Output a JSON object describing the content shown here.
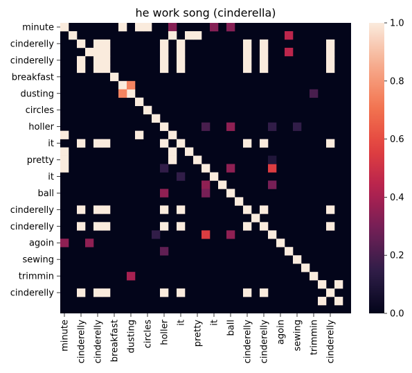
{
  "chart_data": {
    "type": "heatmap",
    "title": "he work song (cinderella)",
    "words": [
      "minute",
      "",
      "cinderelly",
      "",
      "cinderelly",
      "",
      "breakfast",
      "",
      "dusting",
      "",
      "circles",
      "",
      "holler",
      "",
      "it",
      "",
      "pretty",
      "",
      "it",
      "",
      "ball",
      "",
      "cinderelly",
      "",
      "cinderelly",
      "",
      "agoin",
      "",
      "sewing",
      "",
      "trimmin",
      "",
      "cinderelly",
      "",
      ""
    ],
    "x_tick_labels": [
      "minute",
      "cinderelly",
      "cinderelly",
      "breakfast",
      "dusting",
      "circles",
      "holler",
      "it",
      "pretty",
      "it",
      "ball",
      "cinderelly",
      "cinderelly",
      "agoin",
      "sewing",
      "trimmin",
      "cinderelly"
    ],
    "y_tick_labels": [
      "minute",
      "cinderelly",
      "cinderelly",
      "breakfast",
      "dusting",
      "circles",
      "holler",
      "it",
      "pretty",
      "it",
      "ball",
      "cinderelly",
      "cinderelly",
      "agoin",
      "sewing",
      "trimmin",
      "cinderelly"
    ],
    "tick_every": 2,
    "colorbar": {
      "min": 0.0,
      "max": 1.0,
      "ticks": [
        "0.0",
        "0.2",
        "0.4",
        "0.6",
        "0.8",
        "1.0"
      ]
    },
    "colormap": [
      "#03051a",
      "#2e1d47",
      "#701f57",
      "#b5214f",
      "#e3423e",
      "#f37651",
      "#f6ad8f",
      "#faebdd"
    ],
    "cells": [
      [
        0,
        0,
        1
      ],
      [
        1,
        1,
        1
      ],
      [
        2,
        2,
        1
      ],
      [
        3,
        3,
        1
      ],
      [
        4,
        4,
        1
      ],
      [
        5,
        5,
        1
      ],
      [
        6,
        6,
        1
      ],
      [
        7,
        7,
        1
      ],
      [
        8,
        8,
        1
      ],
      [
        9,
        9,
        1
      ],
      [
        10,
        10,
        1
      ],
      [
        11,
        11,
        1
      ],
      [
        12,
        12,
        1
      ],
      [
        13,
        13,
        1
      ],
      [
        14,
        14,
        1
      ],
      [
        15,
        15,
        1
      ],
      [
        16,
        16,
        1
      ],
      [
        17,
        17,
        1
      ],
      [
        18,
        18,
        1
      ],
      [
        19,
        19,
        1
      ],
      [
        20,
        20,
        1
      ],
      [
        21,
        21,
        1
      ],
      [
        22,
        22,
        1
      ],
      [
        23,
        23,
        1
      ],
      [
        24,
        24,
        1
      ],
      [
        25,
        25,
        1
      ],
      [
        26,
        26,
        1
      ],
      [
        27,
        27,
        1
      ],
      [
        28,
        28,
        1
      ],
      [
        29,
        29,
        1
      ],
      [
        30,
        30,
        1
      ],
      [
        31,
        31,
        1
      ],
      [
        32,
        32,
        1
      ],
      [
        33,
        33,
        1
      ],
      [
        0,
        7,
        1
      ],
      [
        0,
        9,
        1
      ],
      [
        0,
        10,
        1
      ],
      [
        0,
        13,
        0.33
      ],
      [
        0,
        18,
        0.33
      ],
      [
        0,
        20,
        0.33
      ],
      [
        1,
        13,
        1
      ],
      [
        1,
        15,
        1
      ],
      [
        1,
        16,
        1
      ],
      [
        1,
        27,
        0.45
      ],
      [
        2,
        4,
        1
      ],
      [
        2,
        5,
        1
      ],
      [
        2,
        14,
        1
      ],
      [
        2,
        12,
        1
      ],
      [
        2,
        22,
        1
      ],
      [
        2,
        24,
        1
      ],
      [
        2,
        32,
        1
      ],
      [
        4,
        2,
        1
      ],
      [
        4,
        5,
        1
      ],
      [
        4,
        12,
        1
      ],
      [
        4,
        14,
        1
      ],
      [
        4,
        22,
        1
      ],
      [
        4,
        24,
        1
      ],
      [
        4,
        32,
        1
      ],
      [
        5,
        2,
        1
      ],
      [
        5,
        4,
        1
      ],
      [
        5,
        12,
        1
      ],
      [
        5,
        14,
        1
      ],
      [
        5,
        22,
        1
      ],
      [
        5,
        24,
        1
      ],
      [
        5,
        32,
        1
      ],
      [
        3,
        4,
        1
      ],
      [
        3,
        5,
        1
      ],
      [
        3,
        12,
        1
      ],
      [
        3,
        14,
        1
      ],
      [
        3,
        22,
        1
      ],
      [
        3,
        24,
        1
      ],
      [
        3,
        32,
        1
      ],
      [
        3,
        27,
        0.45
      ],
      [
        7,
        8,
        0.75
      ],
      [
        8,
        7,
        0.75
      ],
      [
        8,
        30,
        0.2
      ],
      [
        12,
        17,
        0.2
      ],
      [
        12,
        20,
        0.35
      ],
      [
        12,
        25,
        0.15
      ],
      [
        12,
        28,
        0.15
      ],
      [
        13,
        0,
        1
      ],
      [
        13,
        9,
        1
      ],
      [
        14,
        2,
        1
      ],
      [
        14,
        4,
        1
      ],
      [
        14,
        5,
        1
      ],
      [
        14,
        12,
        1
      ],
      [
        14,
        22,
        1
      ],
      [
        14,
        24,
        1
      ],
      [
        14,
        32,
        1
      ],
      [
        15,
        0,
        1
      ],
      [
        16,
        0,
        1
      ],
      [
        17,
        0,
        1
      ],
      [
        15,
        13,
        1
      ],
      [
        16,
        13,
        1
      ],
      [
        17,
        12,
        0.15
      ],
      [
        17,
        20,
        0.35
      ],
      [
        17,
        25,
        0.55
      ],
      [
        16,
        25,
        0.1
      ],
      [
        18,
        14,
        0.15
      ],
      [
        19,
        17,
        0.35
      ],
      [
        19,
        25,
        0.3
      ],
      [
        20,
        12,
        0.35
      ],
      [
        20,
        17,
        0.3
      ],
      [
        22,
        2,
        1
      ],
      [
        22,
        4,
        1
      ],
      [
        22,
        5,
        1
      ],
      [
        22,
        12,
        1
      ],
      [
        22,
        14,
        1
      ],
      [
        22,
        24,
        1
      ],
      [
        22,
        32,
        1
      ],
      [
        24,
        2,
        1
      ],
      [
        24,
        4,
        1
      ],
      [
        24,
        5,
        1
      ],
      [
        24,
        12,
        1
      ],
      [
        24,
        14,
        1
      ],
      [
        24,
        22,
        1
      ],
      [
        24,
        32,
        1
      ],
      [
        25,
        11,
        0.15
      ],
      [
        25,
        17,
        0.55
      ],
      [
        25,
        20,
        0.35
      ],
      [
        26,
        0,
        0.35
      ],
      [
        26,
        3,
        0.35
      ],
      [
        27,
        12,
        0.25
      ],
      [
        30,
        8,
        0.4
      ],
      [
        32,
        2,
        1
      ],
      [
        32,
        4,
        1
      ],
      [
        32,
        5,
        1
      ],
      [
        32,
        12,
        1
      ],
      [
        32,
        14,
        1
      ],
      [
        32,
        22,
        1
      ],
      [
        32,
        24,
        1
      ],
      [
        31,
        33,
        1
      ],
      [
        33,
        31,
        1
      ]
    ]
  }
}
